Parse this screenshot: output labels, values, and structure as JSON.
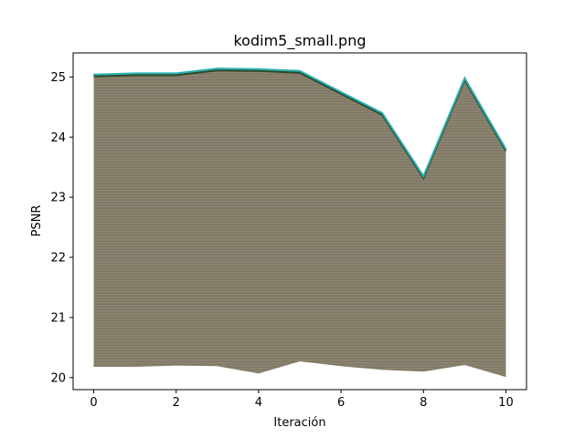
{
  "chart_data": {
    "type": "line",
    "title": "kodim5_small.png",
    "xlabel": "Iteración",
    "ylabel": "PSNR",
    "xlim": [
      -0.5,
      10.5
    ],
    "ylim": [
      19.8,
      25.4
    ],
    "xticks": [
      0,
      2,
      4,
      6,
      8,
      10
    ],
    "yticks": [
      20,
      21,
      22,
      23,
      24,
      25
    ],
    "grid": false,
    "x": [
      0,
      1,
      2,
      3,
      4,
      5,
      6,
      7,
      8,
      9,
      10
    ],
    "upper_envelope": [
      25.04,
      25.06,
      25.06,
      25.14,
      25.13,
      25.1,
      24.75,
      24.4,
      23.35,
      24.98,
      23.8
    ],
    "lower_envelope": [
      20.18,
      20.18,
      20.2,
      20.19,
      20.07,
      20.27,
      20.19,
      20.13,
      20.1,
      20.21,
      20.01
    ],
    "series_count_note": "",
    "colors": {
      "fill": "#8a7d6a",
      "edge_top": "#2ab0b0",
      "edge_dark": "#2a4a2a"
    }
  }
}
